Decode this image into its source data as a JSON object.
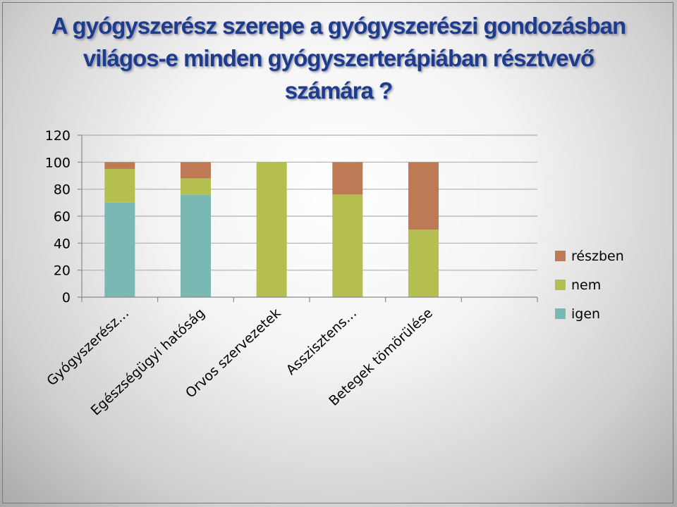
{
  "title": {
    "line1": "A gyógyszerész szerepe a gyógyszerészi gondozásban",
    "line2": "világos-e minden gyógyszerterápiában résztvevő",
    "line3": "számára ?"
  },
  "chart_data": {
    "type": "bar",
    "stacked": true,
    "title": "",
    "xlabel": "",
    "ylabel": "",
    "ylim": [
      0,
      120
    ],
    "yticks": [
      0,
      20,
      40,
      60,
      80,
      100,
      120
    ],
    "grid": true,
    "legend_position": "right",
    "categories": [
      "Gyógyszerész…",
      "Egészségügyi hatóság",
      "Orvos szervezetek",
      "Asszisztens…",
      "Betegek tömörülése"
    ],
    "series": [
      {
        "name": "igen",
        "color": "#7ab8b3",
        "values": [
          70,
          76,
          0,
          0,
          0
        ]
      },
      {
        "name": "nem",
        "color": "#b5bf4f",
        "values": [
          25,
          12,
          100,
          76,
          50
        ]
      },
      {
        "name": "részben",
        "color": "#bd7a55",
        "values": [
          5,
          12,
          0,
          24,
          50
        ]
      }
    ],
    "legend_order": [
      "részben",
      "nem",
      "igen"
    ]
  }
}
